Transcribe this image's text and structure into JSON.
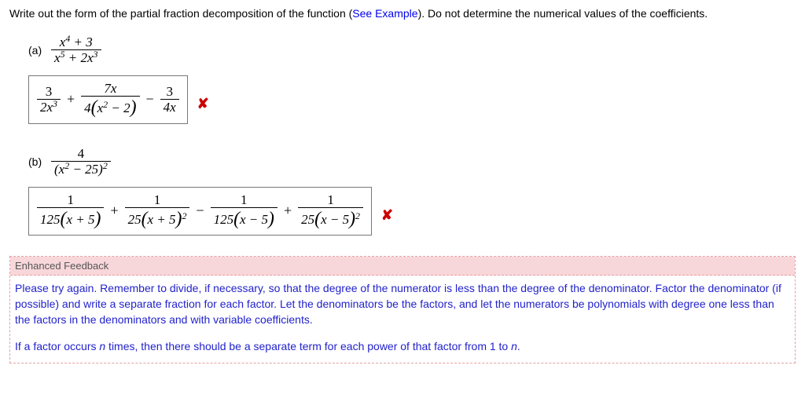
{
  "instruction": {
    "prefix": "Write out the form of the partial fraction decomposition of the function (",
    "link": "See Example",
    "suffix": "). Do not determine the numerical values of the coefficients."
  },
  "partA": {
    "label": "(a)",
    "prompt_num_html": "x<span class='sup'>4</span> + 3",
    "prompt_den_html": "x<span class='sup'>5</span> + 2x<span class='sup'>3</span>",
    "answer": {
      "t1_num": "3",
      "t1_den_html": "2x<span class='sup'>3</span>",
      "op1": "+",
      "t2_num_html": "7x",
      "t2_den_html": "4<span class='paren'>(</span>x<span class='sup'>2</span> − 2<span class='paren'>)</span>",
      "op2": "−",
      "t3_num": "3",
      "t3_den_html": "4x"
    }
  },
  "partB": {
    "label": "(b)",
    "prompt_num": "4",
    "prompt_den_html": "(x<span class='sup'>2</span> − 25)<span class='sup'>2</span>",
    "answer": {
      "t1_num": "1",
      "t1_den_html": "125<span class='paren'>(</span>x + 5<span class='paren'>)</span>",
      "op1": "+",
      "t2_num": "1",
      "t2_den_html": "25<span class='paren'>(</span>x + 5<span class='paren'>)</span><span class='sup'>2</span>",
      "op2": "−",
      "t3_num": "1",
      "t3_den_html": "125<span class='paren'>(</span>x − 5<span class='paren'>)</span>",
      "op3": "+",
      "t4_num": "1",
      "t4_den_html": "25<span class='paren'>(</span>x − 5<span class='paren'>)</span><span class='sup'>2</span>"
    }
  },
  "feedback": {
    "header": "Enhanced Feedback",
    "para1": "Please try again. Remember to divide, if necessary, so that the degree of the numerator is less than the degree of the denominator. Factor the denominator (if possible) and write a separate fraction for each factor. Let the denominators be the factors, and let the numerators be polynomials with degree one less than the factors in the denominators and with variable coefficients.",
    "para2_prefix": "If a factor occurs ",
    "para2_n": "n",
    "para2_mid": " times, then there should be a separate term for each power of that factor from 1 to ",
    "para2_n2": "n",
    "para2_suffix": "."
  },
  "marks": {
    "wrong": "✘"
  },
  "colors": {
    "link": "#0000ee",
    "wrong": "#c00",
    "feedback_body": "#2222cc",
    "feedback_bg": "#f8d7db",
    "feedback_border": "#e7a0a0"
  }
}
